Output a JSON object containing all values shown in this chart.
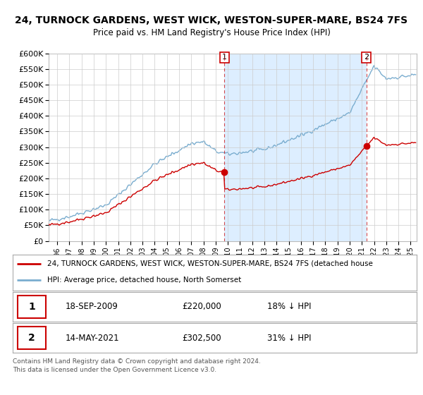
{
  "title_line1": "24, TURNOCK GARDENS, WEST WICK, WESTON-SUPER-MARE, BS24 7FS",
  "title_line2": "Price paid vs. HM Land Registry's House Price Index (HPI)",
  "ylim": [
    0,
    600000
  ],
  "yticks": [
    0,
    50000,
    100000,
    150000,
    200000,
    250000,
    300000,
    350000,
    400000,
    450000,
    500000,
    550000,
    600000
  ],
  "xlim_start": 1995.3,
  "xlim_end": 2025.5,
  "purchase1_x": 2009.72,
  "purchase1_y": 220000,
  "purchase2_x": 2021.37,
  "purchase2_y": 302500,
  "red_line_color": "#cc0000",
  "blue_line_color": "#7aadcf",
  "shade_color": "#ddeeff",
  "legend_entry1": "24, TURNOCK GARDENS, WEST WICK, WESTON-SUPER-MARE, BS24 7FS (detached house",
  "legend_entry2": "HPI: Average price, detached house, North Somerset",
  "table_row1_num": "1",
  "table_row1_date": "18-SEP-2009",
  "table_row1_price": "£220,000",
  "table_row1_hpi": "18% ↓ HPI",
  "table_row2_num": "2",
  "table_row2_date": "14-MAY-2021",
  "table_row2_price": "£302,500",
  "table_row2_hpi": "31% ↓ HPI",
  "footnote": "Contains HM Land Registry data © Crown copyright and database right 2024.\nThis data is licensed under the Open Government Licence v3.0.",
  "bg_color": "#ffffff",
  "grid_color": "#cccccc"
}
